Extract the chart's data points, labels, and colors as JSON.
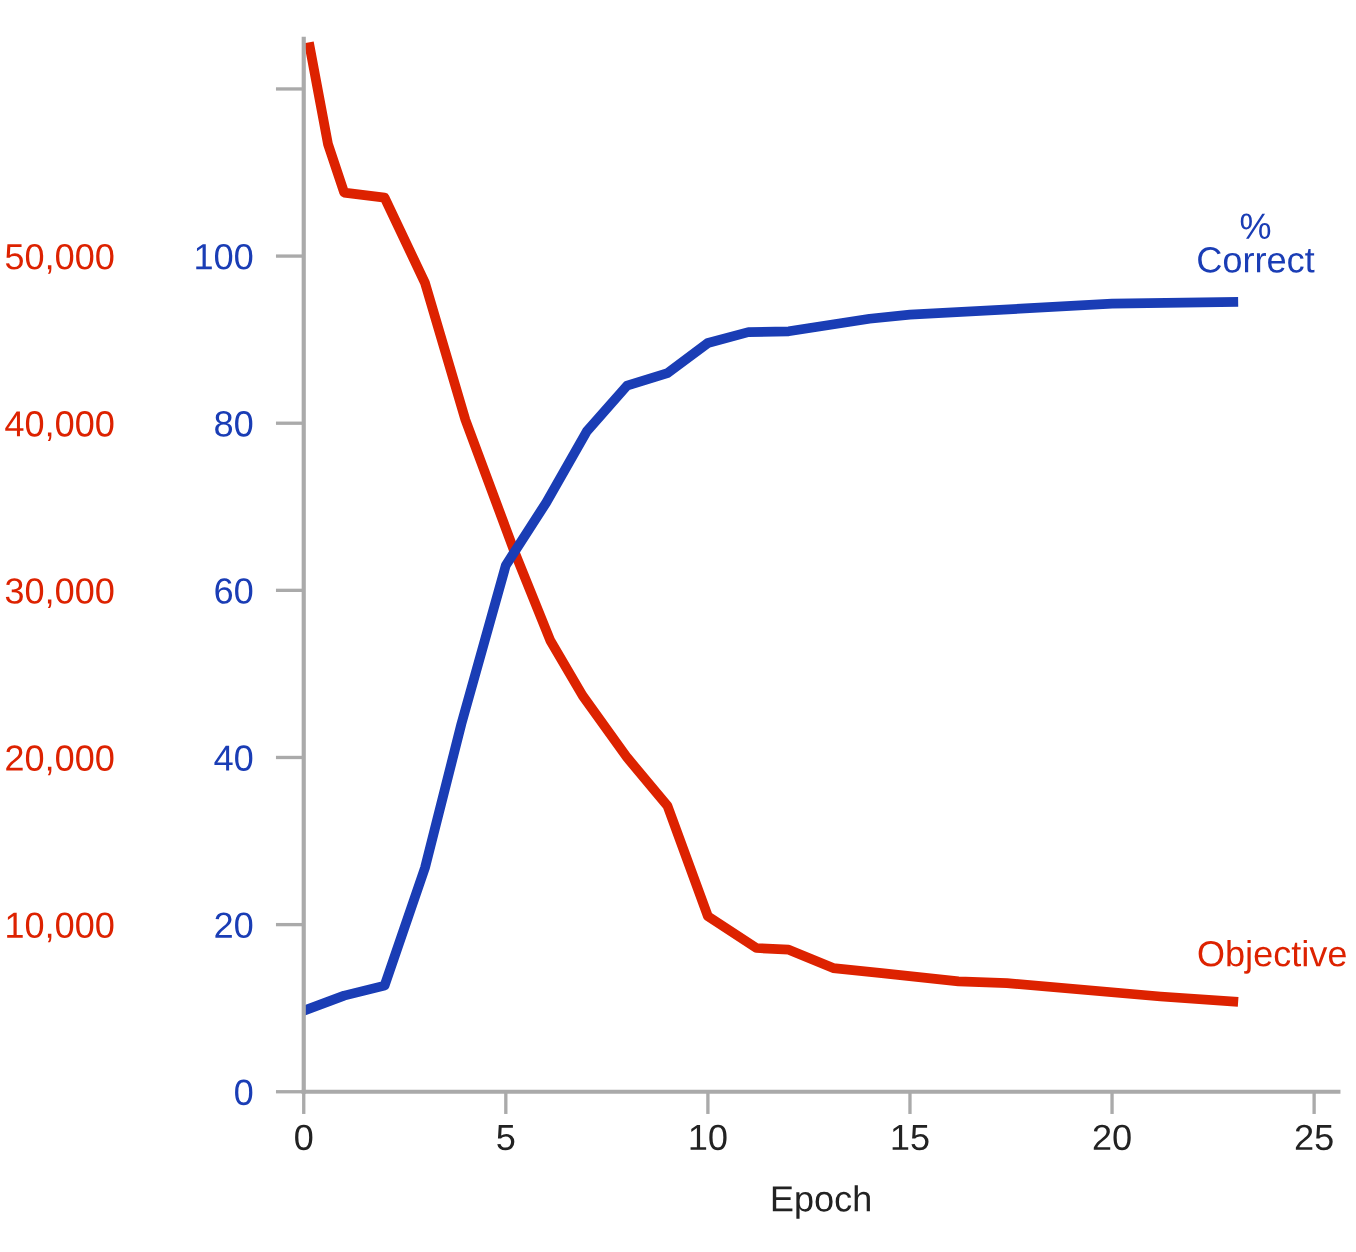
{
  "chart_data": {
    "type": "line",
    "xlabel": "Epoch",
    "xlim": [
      0,
      25.6
    ],
    "xticks": [
      0,
      5,
      10,
      15,
      20,
      25
    ],
    "ylim": [
      0,
      126
    ],
    "yticks": [
      0,
      20,
      40,
      60,
      80,
      100,
      {
        "value": 120,
        "label": null
      }
    ],
    "y2lim": [
      0,
      63000
    ],
    "y2ticks": [
      {
        "value": 10000,
        "label": "10,000"
      },
      {
        "value": 20000,
        "label": "20,000"
      },
      {
        "value": 30000,
        "label": "30,000"
      },
      {
        "value": 40000,
        "label": "40,000"
      },
      {
        "value": 50000,
        "label": "50,000"
      }
    ],
    "grid": false,
    "legend": false,
    "marker": "none",
    "line_style": "solid",
    "series": [
      {
        "name": "%\nCorrect",
        "color": "#1a3db5",
        "x": [
          0,
          1,
          2,
          3,
          3.9,
          5,
          6,
          7,
          8,
          9,
          10,
          11,
          12,
          14,
          15,
          20,
          23
        ],
        "values": [
          9.7,
          11.5,
          12.7,
          26.8,
          44,
          63,
          70.5,
          79,
          84.5,
          86,
          89.6,
          90.9,
          91,
          92.5,
          93,
          94.3,
          94.5
        ]
      },
      {
        "name": "Objective",
        "color": "#dd2200",
        "axis": "y2",
        "x": [
          0.15,
          0.6,
          1,
          2,
          3,
          4,
          5.2,
          6.1,
          6.9,
          8,
          9,
          10,
          11.2,
          12,
          13.1,
          14.3,
          16.2,
          17.4,
          21.2,
          23
        ],
        "values": [
          62500,
          56700,
          53800,
          53500,
          48400,
          40200,
          32400,
          27000,
          23700,
          20000,
          17100,
          10500,
          8600,
          8500,
          7400,
          7100,
          6600,
          6500,
          5700,
          5400
        ]
      }
    ]
  }
}
